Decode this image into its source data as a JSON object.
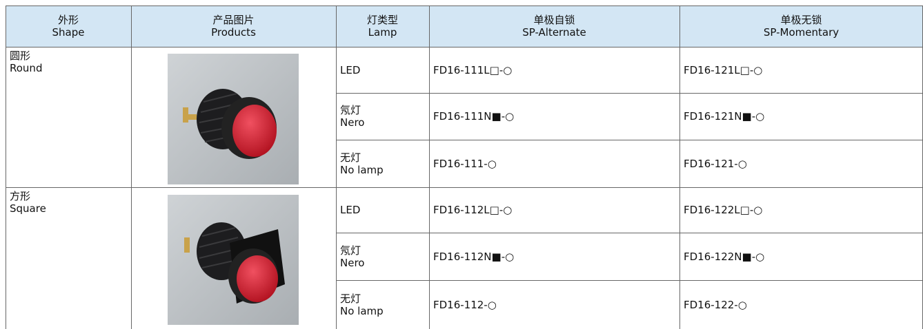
{
  "header": [
    [
      "外形",
      "Shape"
    ],
    [
      "产品图片",
      "Products"
    ],
    [
      "灯类型",
      "Lamp"
    ],
    [
      "单极自锁",
      "SP-Alternate"
    ],
    [
      "单极无锁",
      "SP-Momentary"
    ]
  ],
  "groups": [
    {
      "shape": [
        "圆形",
        "Round"
      ],
      "rows": [
        {
          "lamp": [
            "LED"
          ],
          "alternate": "FD16-111L□-○",
          "momentary": "FD16-121L□-○"
        },
        {
          "lamp": [
            "氖灯",
            "Nero"
          ],
          "alternate": "FD16-111N■-○",
          "momentary": "FD16-121N■-○"
        },
        {
          "lamp": [
            "无灯",
            "No lamp"
          ],
          "alternate": "FD16-111-○",
          "momentary": "FD16-121-○"
        }
      ]
    },
    {
      "shape": [
        "方形",
        "Square"
      ],
      "rows": [
        {
          "lamp": [
            "LED"
          ],
          "alternate": "FD16-112L□-○",
          "momentary": "FD16-122L□-○"
        },
        {
          "lamp": [
            "氖灯",
            "Nero"
          ],
          "alternate": "FD16-112N■-○",
          "momentary": "FD16-122N■-○"
        },
        {
          "lamp": [
            "无灯",
            "No lamp"
          ],
          "alternate": "FD16-112-○",
          "momentary": "FD16-122-○"
        }
      ]
    }
  ]
}
